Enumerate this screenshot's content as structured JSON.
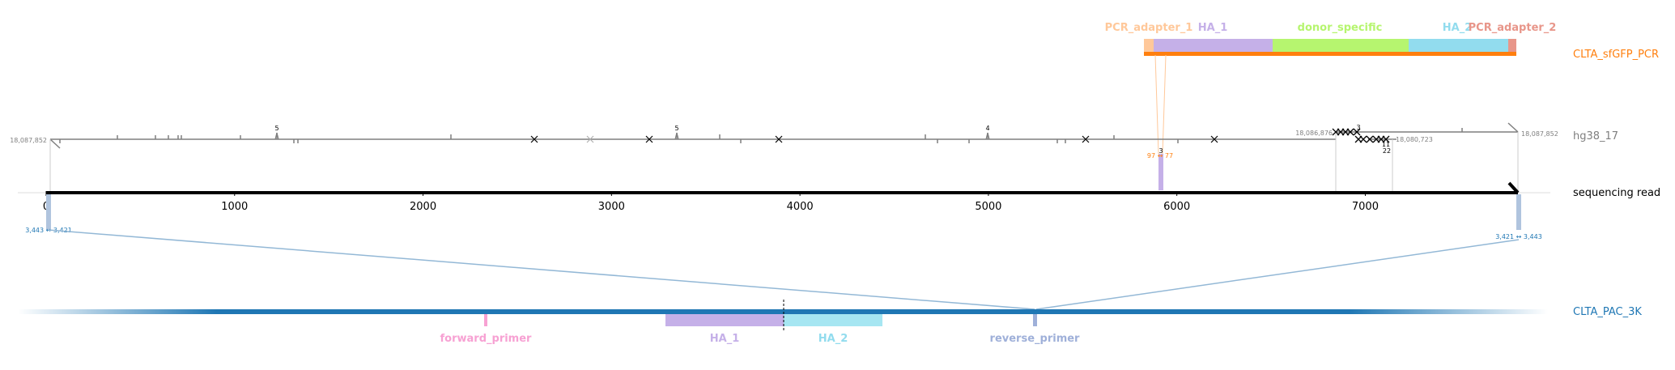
{
  "tracks": {
    "pcr": "CLTA_sfGFP_PCR",
    "genome": "hg38_17",
    "read": "sequencing read",
    "pac": "CLTA_PAC_3K"
  },
  "colors": {
    "pcr_track": "#ff7f0e",
    "genome_track": "#7f7f7f",
    "read_track": "#000000",
    "pac_track": "#1f77b4",
    "PCR_adapter_1": "#ffc89a",
    "HA_1": "#c5b0e8",
    "donor_specific": "#b6f56f",
    "HA_2": "#92dcee",
    "PCR_adapter_2": "#e8968a",
    "forward_primer": "#f7a1d3",
    "reverse_primer": "#9fb0d9",
    "alignment_line": "#93b8d6"
  },
  "pcr_features": [
    {
      "label": "PCR_adapter_1",
      "color": "#ffc89a"
    },
    {
      "label": "HA_1",
      "color": "#c5b0e8"
    },
    {
      "label": "donor_specific",
      "color": "#b6f56f"
    },
    {
      "label": "HA_2",
      "color": "#92dcee"
    },
    {
      "label": "PCR_adapter_2",
      "color": "#e8968a"
    }
  ],
  "pac_features": [
    {
      "label": "forward_primer",
      "color": "#f7a1d3"
    },
    {
      "label": "HA_1",
      "color": "#c5b0e8"
    },
    {
      "label": "HA_2",
      "color": "#92dcee"
    },
    {
      "label": "reverse_primer",
      "color": "#9fb0d9"
    }
  ],
  "read_axis": {
    "ticks": [
      "0",
      "1000",
      "2000",
      "3000",
      "4000",
      "5000",
      "6000",
      "7000"
    ],
    "tick_values": [
      0,
      1000,
      2000,
      3000,
      4000,
      5000,
      6000,
      7000
    ],
    "length": 7810
  },
  "genome_labels": {
    "left_coord": "18,087,852",
    "right_coord": "18,087,852",
    "mid_left_coord": "18,086,876",
    "mid_right_coord": "18,080,723",
    "count_5a": "5",
    "count_5b": "5",
    "count_4": "4",
    "count_3": "3",
    "count_11": "11",
    "count_22": "22"
  },
  "read_labels": {
    "left_pair": "3,443 ↔ 3,421",
    "right_pair": "3,421 ↔ 3,443",
    "pcr_pair": "97 ↔ 77"
  }
}
